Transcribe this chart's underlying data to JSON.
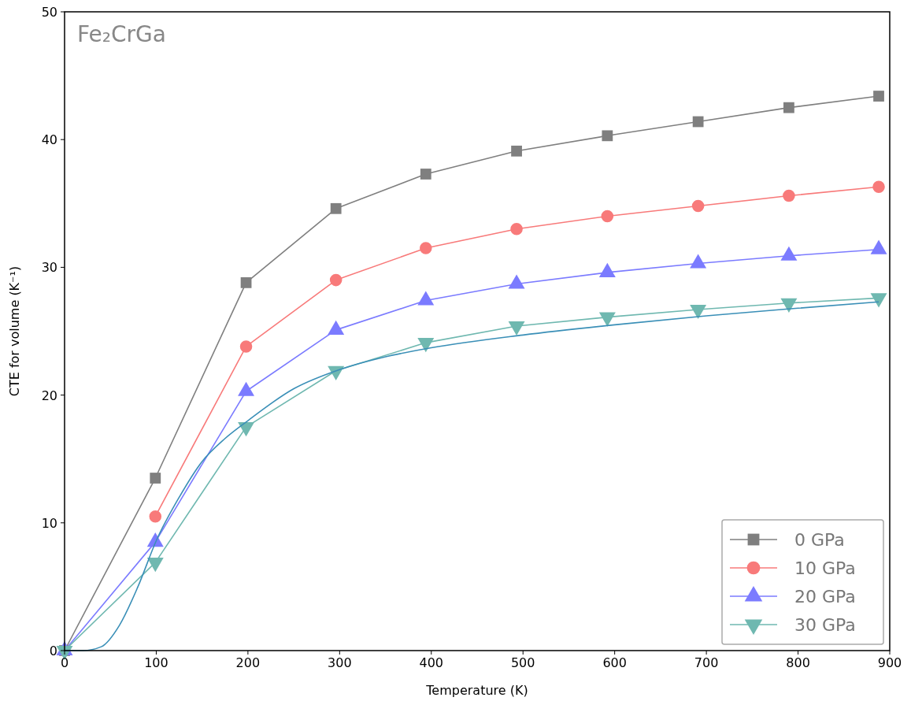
{
  "chart_data": {
    "type": "line",
    "title": "Fe₂CrGa",
    "xlabel": "Temperature (K)",
    "ylabel": "CTE for volume (K⁻¹)",
    "xlim": [
      0,
      900
    ],
    "xticks": [
      0,
      100,
      200,
      300,
      400,
      500,
      600,
      700,
      800,
      900
    ],
    "ylim": [
      0,
      50
    ],
    "yticks": [
      0,
      10,
      20,
      30,
      40,
      50
    ],
    "grid": false,
    "legend": "bottom right",
    "x": [
      0,
      99,
      198,
      296,
      394,
      493,
      592,
      691,
      790,
      888
    ],
    "series": [
      {
        "name": "0 GPa",
        "color": "#7f7f7f",
        "marker": "square",
        "values": [
          0,
          13.5,
          28.8,
          34.6,
          37.3,
          39.1,
          40.3,
          41.4,
          42.5,
          43.4
        ]
      },
      {
        "name": "10 GPa",
        "color": "#f87a7a",
        "marker": "circle",
        "values": [
          null,
          10.5,
          23.8,
          29.0,
          31.5,
          33.0,
          34.0,
          34.8,
          35.6,
          36.3
        ]
      },
      {
        "name": "20 GPa",
        "color": "#7b7bff",
        "marker": "triangle",
        "values": [
          0,
          8.5,
          20.3,
          25.1,
          27.4,
          28.7,
          29.6,
          30.3,
          30.9,
          31.4
        ]
      },
      {
        "name": "30 GPa",
        "color": "#6fb8b0",
        "marker": "triangle-down",
        "values": [
          0,
          6.9,
          17.5,
          21.9,
          24.1,
          25.4,
          26.1,
          26.7,
          27.2,
          27.6
        ]
      },
      {
        "color": "#3a8fb7",
        "marker": "none",
        "x": [
          0,
          20,
          40,
          60,
          80,
          100,
          125,
          150,
          175,
          200,
          250,
          300,
          350,
          400,
          500,
          600,
          700,
          800,
          888
        ],
        "values": [
          0,
          0,
          0.3,
          2,
          5,
          8.6,
          12,
          14.8,
          16.6,
          18,
          20.5,
          22,
          23,
          23.7,
          24.7,
          25.5,
          26.2,
          26.8,
          27.3
        ]
      }
    ]
  }
}
